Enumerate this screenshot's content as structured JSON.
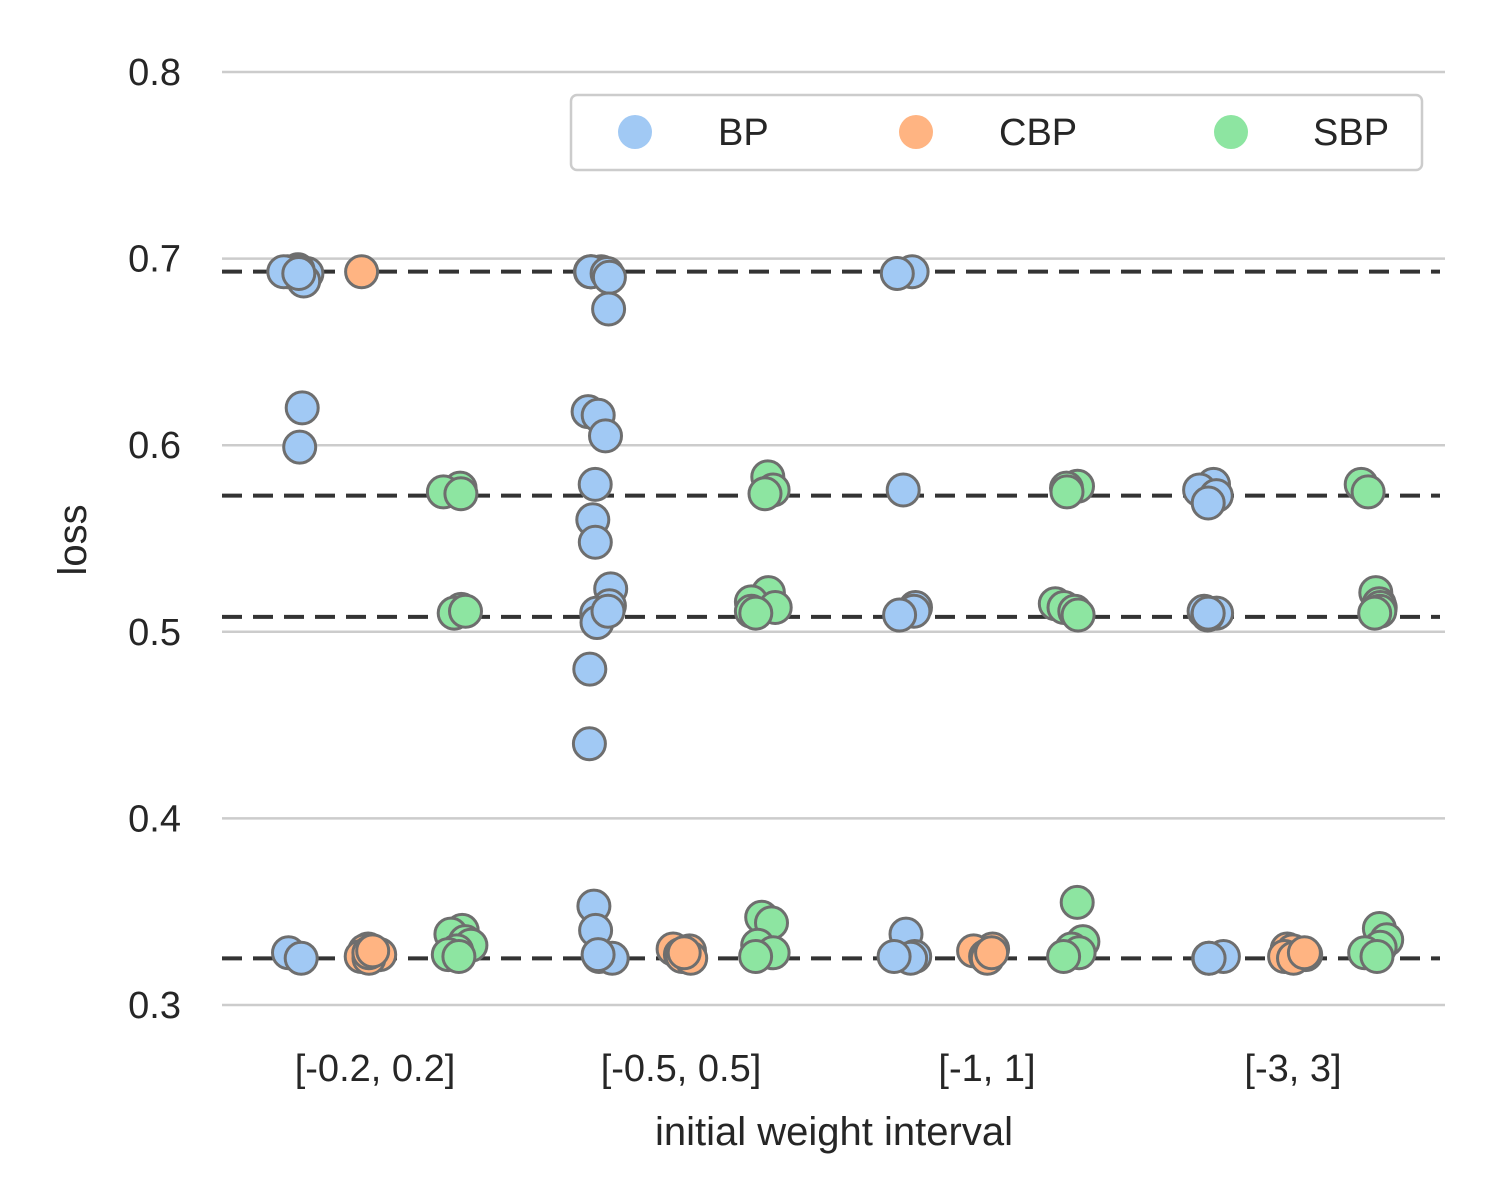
{
  "chart_data": {
    "type": "scatter",
    "title": "",
    "xlabel": "initial weight interval",
    "ylabel": "loss",
    "ylim": [
      0.3,
      0.8
    ],
    "yticks": [
      "0.3",
      "0.4",
      "0.5",
      "0.6",
      "0.7",
      "0.8"
    ],
    "categories": [
      "[-0.2, 0.2]",
      "[-0.5, 0.5]",
      "[-1, 1]",
      "[-3, 3]"
    ],
    "grid": true,
    "legend": {
      "placement": "top-right",
      "ncol": 3
    },
    "reference_lines": [
      0.693,
      0.573,
      0.508,
      0.325
    ],
    "series": [
      {
        "name": "BP",
        "color": "#a1c9f4",
        "points": [
          [
            0,
            0.693
          ],
          [
            0,
            0.693
          ],
          [
            0,
            0.693
          ],
          [
            0,
            0.692
          ],
          [
            0,
            0.694
          ],
          [
            0,
            0.693
          ],
          [
            0,
            0.693
          ],
          [
            0,
            0.688
          ],
          [
            0,
            0.692
          ],
          [
            0,
            0.62
          ],
          [
            0,
            0.599
          ],
          [
            0,
            0.328
          ],
          [
            0,
            0.325
          ],
          [
            1,
            0.693
          ],
          [
            1,
            0.693
          ],
          [
            1,
            0.693
          ],
          [
            1,
            0.693
          ],
          [
            1,
            0.692
          ],
          [
            1,
            0.69
          ],
          [
            1,
            0.673
          ],
          [
            1,
            0.618
          ],
          [
            1,
            0.616
          ],
          [
            1,
            0.605
          ],
          [
            1,
            0.579
          ],
          [
            1,
            0.56
          ],
          [
            1,
            0.548
          ],
          [
            1,
            0.523
          ],
          [
            1,
            0.514
          ],
          [
            1,
            0.51
          ],
          [
            1,
            0.505
          ],
          [
            1,
            0.511
          ],
          [
            1,
            0.48
          ],
          [
            1,
            0.44
          ],
          [
            1,
            0.353
          ],
          [
            1,
            0.34
          ],
          [
            1,
            0.326
          ],
          [
            1,
            0.325
          ],
          [
            1,
            0.327
          ],
          [
            2,
            0.693
          ],
          [
            2,
            0.692
          ],
          [
            2,
            0.576
          ],
          [
            2,
            0.513
          ],
          [
            2,
            0.511
          ],
          [
            2,
            0.509
          ],
          [
            2,
            0.338
          ],
          [
            2,
            0.326
          ],
          [
            2,
            0.325
          ],
          [
            2,
            0.326
          ],
          [
            3,
            0.579
          ],
          [
            3,
            0.576
          ],
          [
            3,
            0.573
          ],
          [
            3,
            0.569
          ],
          [
            3,
            0.51
          ],
          [
            3,
            0.511
          ],
          [
            3,
            0.509
          ],
          [
            3,
            0.51
          ],
          [
            3,
            0.325
          ],
          [
            3,
            0.326
          ],
          [
            3,
            0.325
          ]
        ]
      },
      {
        "name": "CBP",
        "color": "#ffb482",
        "points": [
          [
            0,
            0.693
          ],
          [
            0,
            0.33
          ],
          [
            0,
            0.329
          ],
          [
            0,
            0.327
          ],
          [
            0,
            0.326
          ],
          [
            0,
            0.325
          ],
          [
            0,
            0.328
          ],
          [
            0,
            0.329
          ],
          [
            1,
            0.33
          ],
          [
            1,
            0.329
          ],
          [
            1,
            0.327
          ],
          [
            1,
            0.326
          ],
          [
            1,
            0.325
          ],
          [
            1,
            0.328
          ],
          [
            2,
            0.33
          ],
          [
            2,
            0.329
          ],
          [
            2,
            0.327
          ],
          [
            2,
            0.326
          ],
          [
            2,
            0.325
          ],
          [
            2,
            0.328
          ],
          [
            3,
            0.33
          ],
          [
            3,
            0.329
          ],
          [
            3,
            0.327
          ],
          [
            3,
            0.326
          ],
          [
            3,
            0.325
          ],
          [
            3,
            0.328
          ]
        ]
      },
      {
        "name": "SBP",
        "color": "#8de5a1",
        "points": [
          [
            0,
            0.577
          ],
          [
            0,
            0.575
          ],
          [
            0,
            0.574
          ],
          [
            0,
            0.512
          ],
          [
            0,
            0.51
          ],
          [
            0,
            0.511
          ],
          [
            0,
            0.34
          ],
          [
            0,
            0.338
          ],
          [
            0,
            0.334
          ],
          [
            0,
            0.332
          ],
          [
            0,
            0.329
          ],
          [
            0,
            0.327
          ],
          [
            0,
            0.326
          ],
          [
            1,
            0.583
          ],
          [
            1,
            0.576
          ],
          [
            1,
            0.574
          ],
          [
            1,
            0.521
          ],
          [
            1,
            0.516
          ],
          [
            1,
            0.513
          ],
          [
            1,
            0.511
          ],
          [
            1,
            0.51
          ],
          [
            1,
            0.347
          ],
          [
            1,
            0.344
          ],
          [
            1,
            0.332
          ],
          [
            1,
            0.328
          ],
          [
            1,
            0.326
          ],
          [
            2,
            0.578
          ],
          [
            2,
            0.577
          ],
          [
            2,
            0.575
          ],
          [
            2,
            0.515
          ],
          [
            2,
            0.513
          ],
          [
            2,
            0.511
          ],
          [
            2,
            0.509
          ],
          [
            2,
            0.355
          ],
          [
            2,
            0.334
          ],
          [
            2,
            0.33
          ],
          [
            2,
            0.328
          ],
          [
            2,
            0.326
          ],
          [
            3,
            0.579
          ],
          [
            3,
            0.575
          ],
          [
            3,
            0.521
          ],
          [
            3,
            0.515
          ],
          [
            3,
            0.513
          ],
          [
            3,
            0.511
          ],
          [
            3,
            0.51
          ],
          [
            3,
            0.341
          ],
          [
            3,
            0.335
          ],
          [
            3,
            0.331
          ],
          [
            3,
            0.328
          ],
          [
            3,
            0.326
          ]
        ]
      }
    ]
  }
}
